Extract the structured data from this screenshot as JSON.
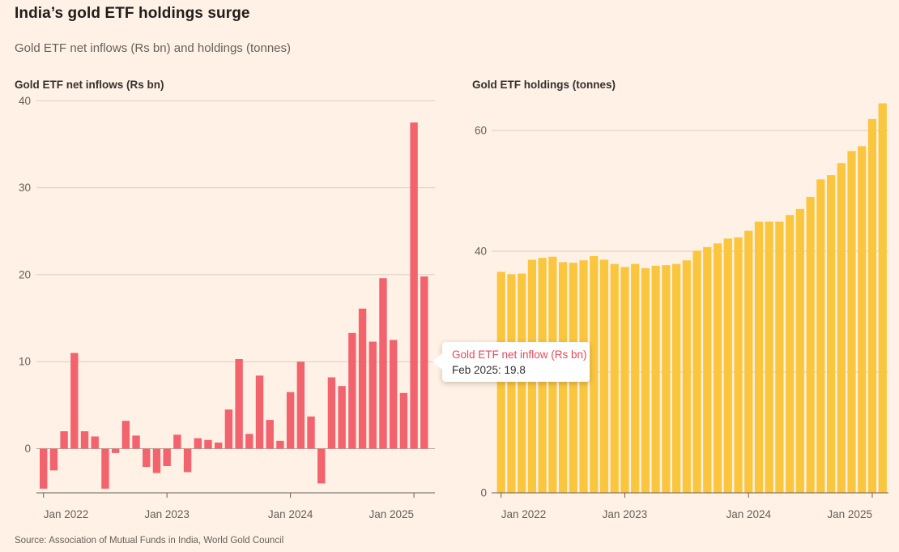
{
  "header": {
    "title": "India’s gold ETF holdings surge",
    "subtitle": "Gold ETF net inflows (Rs bn) and holdings (tonnes)"
  },
  "source": "Source: Association of Mutual Funds in India, World Gold Council",
  "tooltip": {
    "series_label": "Gold ETF net inflow (Rs bn)",
    "value_label": "Feb 2025: 19.8"
  },
  "colors": {
    "background": "#FFF1E5",
    "inflow_bar": "#F2636E",
    "holdings_bar": "#F9C63E",
    "gridline": "#D9CCC1",
    "zero_line": "#B3A99F",
    "axis_line": "#66605C",
    "tick_text": "#66605C",
    "tooltip_accent": "#E5485A"
  },
  "chart_data": [
    {
      "type": "bar",
      "title": "Gold ETF net inflows (Rs bn)",
      "x": [
        "Jan 2022",
        "Feb 2022",
        "Mar 2022",
        "Apr 2022",
        "May 2022",
        "Jun 2022",
        "Jul 2022",
        "Aug 2022",
        "Sep 2022",
        "Oct 2022",
        "Nov 2022",
        "Dec 2022",
        "Jan 2023",
        "Feb 2023",
        "Mar 2023",
        "Apr 2023",
        "May 2023",
        "Jun 2023",
        "Jul 2023",
        "Aug 2023",
        "Sep 2023",
        "Oct 2023",
        "Nov 2023",
        "Dec 2023",
        "Jan 2024",
        "Feb 2024",
        "Mar 2024",
        "Apr 2024",
        "May 2024",
        "Jun 2024",
        "Jul 2024",
        "Aug 2024",
        "Sep 2024",
        "Oct 2024",
        "Nov 2024",
        "Dec 2024",
        "Jan 2025",
        "Feb 2025"
      ],
      "values": [
        -4.6,
        -2.5,
        2.0,
        11.0,
        2.0,
        1.4,
        -4.6,
        -0.5,
        3.2,
        1.5,
        -2.1,
        -2.8,
        -2.0,
        1.6,
        -2.7,
        1.2,
        1.0,
        0.7,
        4.5,
        10.3,
        1.7,
        8.4,
        3.3,
        0.9,
        6.5,
        10.0,
        3.7,
        -4.0,
        8.2,
        7.2,
        13.3,
        16.1,
        12.3,
        19.6,
        12.5,
        6.4,
        37.5,
        19.8
      ],
      "ylabel": "Rs bn",
      "ylim": [
        -5.5,
        40
      ],
      "ytick_labels": [
        0,
        10,
        20,
        30,
        40
      ],
      "gridlines": [
        10,
        20,
        30,
        40
      ],
      "has_zero_line": true,
      "xtick_indices": [
        0,
        12,
        24,
        36
      ],
      "xtick_labels": [
        "Jan 2022",
        "Jan 2023",
        "Jan 2024",
        "Jan 2025"
      ],
      "bar_color": "#F2636E"
    },
    {
      "type": "bar",
      "title": "Gold ETF holdings (tonnes)",
      "x": [
        "Jan 2022",
        "Feb 2022",
        "Mar 2022",
        "Apr 2022",
        "May 2022",
        "Jun 2022",
        "Jul 2022",
        "Aug 2022",
        "Sep 2022",
        "Oct 2022",
        "Nov 2022",
        "Dec 2022",
        "Jan 2023",
        "Feb 2023",
        "Mar 2023",
        "Apr 2023",
        "May 2023",
        "Jun 2023",
        "Jul 2023",
        "Aug 2023",
        "Sep 2023",
        "Oct 2023",
        "Nov 2023",
        "Dec 2023",
        "Jan 2024",
        "Feb 2024",
        "Mar 2024",
        "Apr 2024",
        "May 2024",
        "Jun 2024",
        "Jul 2024",
        "Aug 2024",
        "Sep 2024",
        "Oct 2024",
        "Nov 2024",
        "Dec 2024",
        "Jan 2025",
        "Feb 2025"
      ],
      "values": [
        36.6,
        36.2,
        36.3,
        38.6,
        38.9,
        39.1,
        38.2,
        38.1,
        38.5,
        39.2,
        38.6,
        37.9,
        37.4,
        37.9,
        37.2,
        37.6,
        37.7,
        37.9,
        38.5,
        40.1,
        40.7,
        41.3,
        42.1,
        42.3,
        43.4,
        44.9,
        44.9,
        44.9,
        46.0,
        47.0,
        49.0,
        51.9,
        52.6,
        54.6,
        56.6,
        57.4,
        61.9,
        64.5
      ],
      "ylabel": "tonnes",
      "ylim": [
        0,
        66
      ],
      "ytick_labels": [
        0,
        40,
        60
      ],
      "gridlines": [
        20,
        40,
        60
      ],
      "has_zero_line": false,
      "xtick_indices": [
        0,
        12,
        24,
        36
      ],
      "xtick_labels": [
        "Jan 2022",
        "Jan 2023",
        "Jan 2024",
        "Jan 2025"
      ],
      "bar_color": "#F9C63E"
    }
  ]
}
